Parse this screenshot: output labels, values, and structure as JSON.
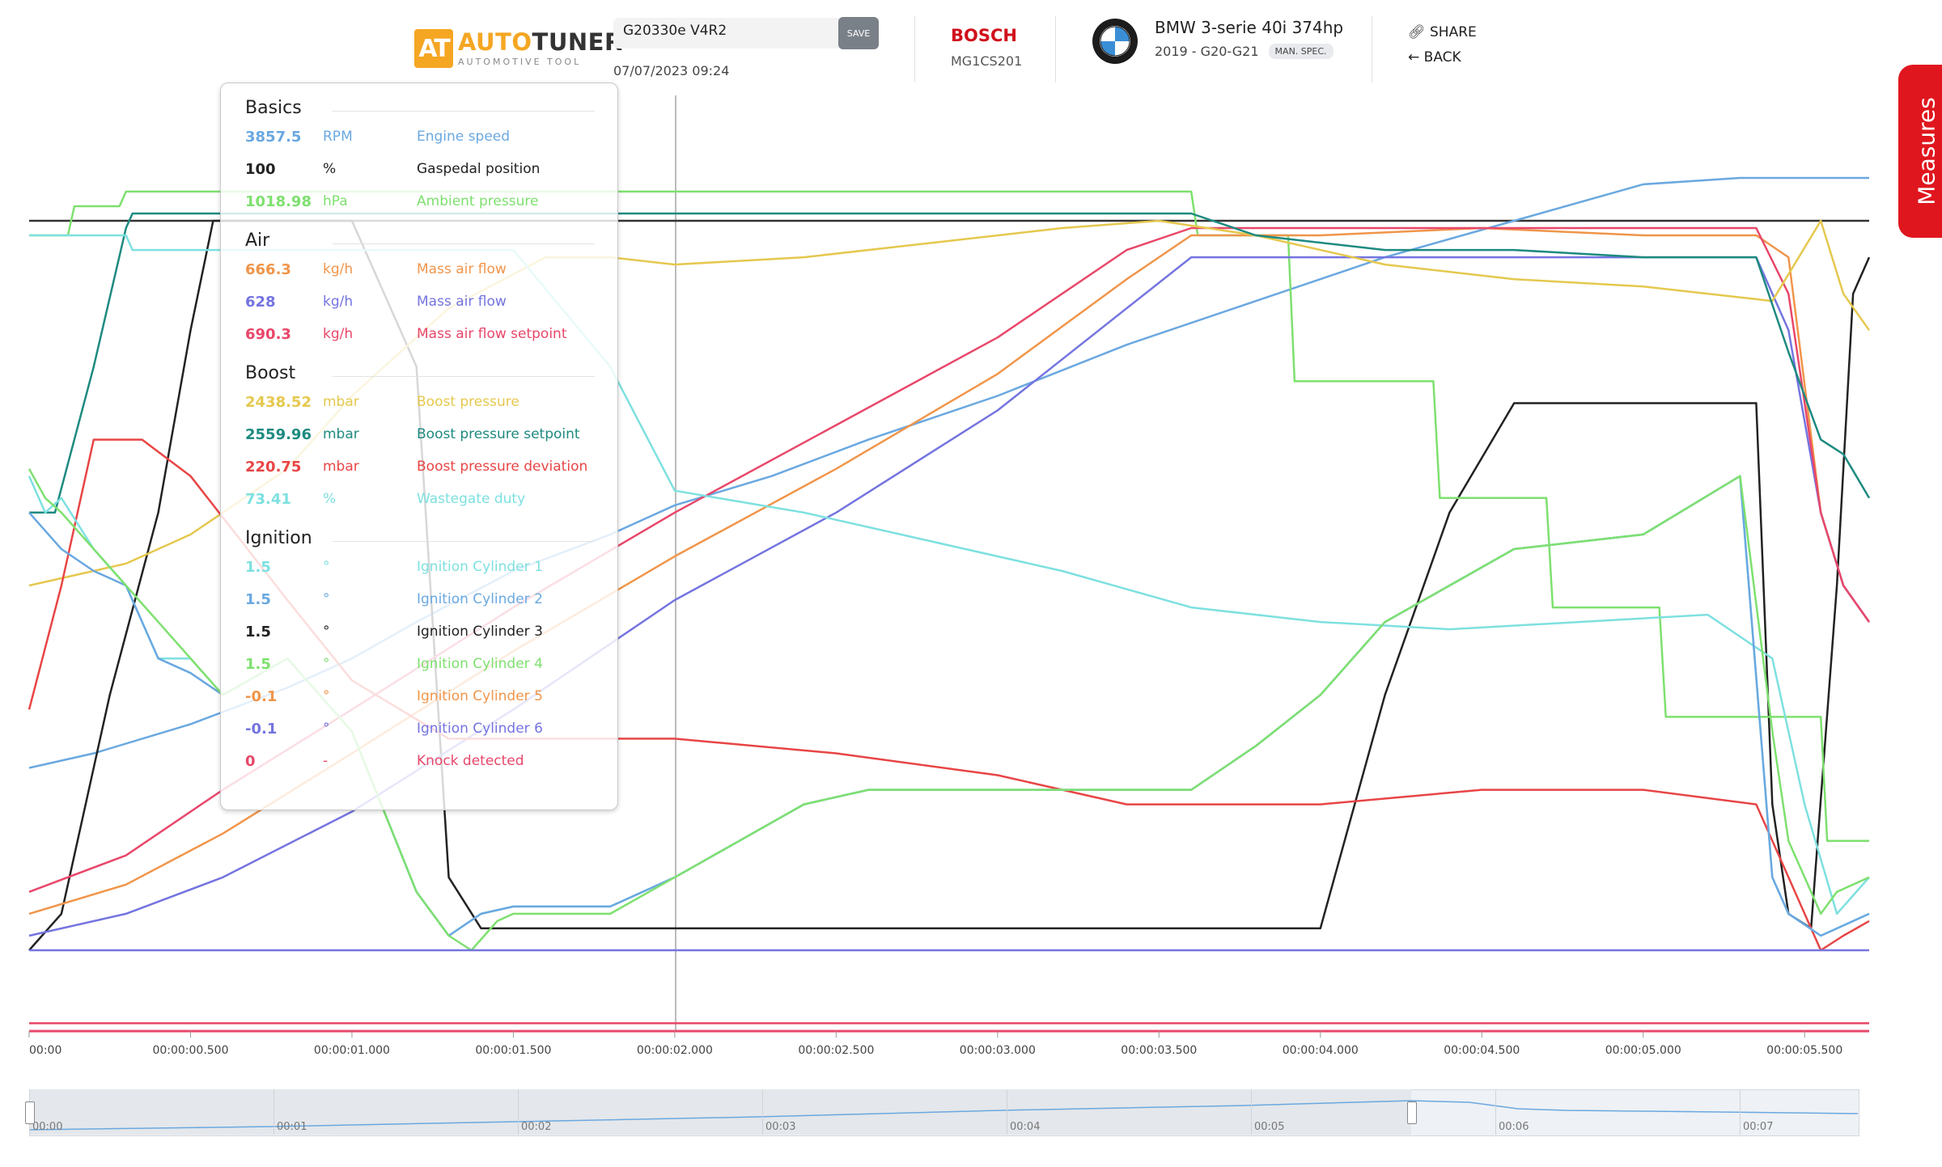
{
  "header": {
    "logo_mark": "AT",
    "logo_brand_a": "AUTO",
    "logo_brand_b": "TUNER",
    "logo_sub": "AUTOMOTIVE TOOL",
    "file_name": "G20330e V4R2",
    "save_label": "SAVE",
    "file_date": "07/07/2023 09:24",
    "ecu_brand": "BOSCH",
    "ecu_model": "MG1CS201",
    "car_title": "BMW 3-serie 40i 374hp",
    "car_sub": "2019 - G20-G21",
    "car_badge": "MAN. SPEC.",
    "share_label": "SHARE",
    "back_label": "BACK",
    "measures_label": "Measures"
  },
  "legend": {
    "groups": [
      {
        "title": "Basics",
        "rows": [
          {
            "value": "3857.5",
            "unit": "RPM",
            "name": "Engine speed",
            "color": "#6aa8e0"
          },
          {
            "value": "100",
            "unit": "%",
            "name": "Gaspedal position",
            "color": "#222222"
          },
          {
            "value": "1018.98",
            "unit": "hPa",
            "name": "Ambient pressure",
            "color": "#7ee06f"
          }
        ]
      },
      {
        "title": "Air",
        "rows": [
          {
            "value": "666.3",
            "unit": "kg/h",
            "name": "Mass air flow",
            "color": "#f0954a"
          },
          {
            "value": "628",
            "unit": "kg/h",
            "name": "Mass air flow",
            "color": "#7474e0"
          },
          {
            "value": "690.3",
            "unit": "kg/h",
            "name": "Mass air flow setpoint",
            "color": "#e8476a"
          }
        ]
      },
      {
        "title": "Boost",
        "rows": [
          {
            "value": "2438.52",
            "unit": "mbar",
            "name": "Boost pressure",
            "color": "#e5c84e"
          },
          {
            "value": "2559.96",
            "unit": "mbar",
            "name": "Boost pressure setpoint",
            "color": "#1e8a80"
          },
          {
            "value": "220.75",
            "unit": "mbar",
            "name": "Boost pressure deviation",
            "color": "#e84545"
          },
          {
            "value": "73.41",
            "unit": "%",
            "name": "Wastegate duty",
            "color": "#7ee0e0"
          }
        ]
      },
      {
        "title": "Ignition",
        "rows": [
          {
            "value": "1.5",
            "unit": "°",
            "name": "Ignition Cylinder 1",
            "color": "#7ee0e0"
          },
          {
            "value": "1.5",
            "unit": "°",
            "name": "Ignition Cylinder 2",
            "color": "#6aa8e0"
          },
          {
            "value": "1.5",
            "unit": "°",
            "name": "Ignition Cylinder 3",
            "color": "#222222"
          },
          {
            "value": "1.5",
            "unit": "°",
            "name": "Ignition Cylinder 4",
            "color": "#7ee06f"
          },
          {
            "value": "-0.1",
            "unit": "°",
            "name": "Ignition Cylinder 5",
            "color": "#f0954a"
          },
          {
            "value": "-0.1",
            "unit": "°",
            "name": "Ignition Cylinder 6",
            "color": "#7474e0"
          },
          {
            "value": "0",
            "unit": "-",
            "name": "Knock detected",
            "color": "#e8476a"
          }
        ]
      }
    ]
  },
  "axis": {
    "x_ticks": [
      "00:00",
      "00:00:00.500",
      "00:00:01.000",
      "00:00:01.500",
      "00:00:02.000",
      "00:00:02.500",
      "00:00:03.000",
      "00:00:03.500",
      "00:00:04.000",
      "00:00:04.500",
      "00:00:05.000",
      "00:00:05.500"
    ]
  },
  "timeline": {
    "labels": [
      "00:00",
      "00:01",
      "00:02",
      "00:03",
      "00:04",
      "00:05",
      "00:06",
      "00:07"
    ]
  },
  "chart_data": {
    "type": "line",
    "x_unit": "s",
    "xlim": [
      0,
      5.7
    ],
    "cursor_x": 2.0,
    "series": [
      {
        "name": "Engine speed",
        "color": "#6aa8e0",
        "x": [
          0,
          0.2,
          0.5,
          0.8,
          1.0,
          1.2,
          1.5,
          1.8,
          2.0,
          2.3,
          2.6,
          3.0,
          3.4,
          3.8,
          4.2,
          4.6,
          5.0,
          5.3,
          5.5,
          5.7
        ],
        "y": [
          0.25,
          0.27,
          0.31,
          0.36,
          0.4,
          0.45,
          0.52,
          0.57,
          0.61,
          0.65,
          0.7,
          0.76,
          0.83,
          0.89,
          0.95,
          1.0,
          1.05,
          1.09,
          1.1,
          1.1
        ]
      },
      {
        "name": "Gaspedal position",
        "color": "#222222",
        "x": [
          0,
          0.1,
          0.25,
          0.4,
          0.5,
          0.57,
          1.0,
          1.2,
          1.3,
          1.4,
          1.5,
          3.0,
          4.0,
          4.2,
          4.4,
          4.6,
          5.0,
          5.35,
          5.4,
          5.45,
          5.52,
          5.6,
          5.65,
          5.7
        ],
        "y": [
          0.0,
          0.05,
          0.35,
          0.6,
          0.85,
          1.0,
          1.0,
          0.8,
          0.1,
          0.03,
          0.03,
          0.03,
          0.03,
          0.35,
          0.6,
          0.75,
          0.75,
          0.75,
          0.2,
          0.05,
          0.03,
          0.5,
          0.9,
          0.95
        ]
      },
      {
        "name": "Ambient pressure",
        "color": "#7ee06f",
        "x": [
          0,
          0.12,
          0.14,
          0.28,
          0.3,
          3.6,
          3.62,
          3.9,
          3.92,
          4.35,
          4.37,
          4.7,
          4.72,
          5.05,
          5.07,
          5.55,
          5.57,
          5.7
        ],
        "y": [
          0.98,
          0.98,
          1.02,
          1.02,
          1.04,
          1.04,
          0.98,
          0.98,
          0.78,
          0.78,
          0.62,
          0.62,
          0.47,
          0.47,
          0.32,
          0.32,
          0.15,
          0.15
        ]
      },
      {
        "name": "Mass air flow",
        "color": "#f0954a",
        "x": [
          0,
          0.3,
          0.6,
          1.0,
          1.5,
          2.0,
          2.5,
          3.0,
          3.4,
          3.6,
          4.0,
          4.5,
          5.0,
          5.35,
          5.45,
          5.55,
          5.62,
          5.7
        ],
        "y": [
          0.05,
          0.09,
          0.16,
          0.27,
          0.41,
          0.54,
          0.66,
          0.79,
          0.92,
          0.98,
          0.98,
          0.99,
          0.98,
          0.98,
          0.95,
          0.6,
          0.5,
          0.45
        ]
      },
      {
        "name": "Mass air flow",
        "color": "#7474e0",
        "x": [
          0,
          0.3,
          0.6,
          1.0,
          1.5,
          2.0,
          2.5,
          3.0,
          3.4,
          3.6,
          4.0,
          4.5,
          5.0,
          5.35,
          5.45,
          5.55,
          5.62,
          5.7
        ],
        "y": [
          0.02,
          0.05,
          0.1,
          0.19,
          0.33,
          0.48,
          0.6,
          0.74,
          0.88,
          0.95,
          0.95,
          0.95,
          0.95,
          0.95,
          0.85,
          0.6,
          0.5,
          0.45
        ]
      },
      {
        "name": "Mass air flow setpoint",
        "color": "#e8476a",
        "x": [
          0,
          0.3,
          0.6,
          1.0,
          1.5,
          2.0,
          2.5,
          3.0,
          3.4,
          3.6,
          4.0,
          4.5,
          5.0,
          5.35,
          5.45,
          5.55,
          5.62,
          5.7
        ],
        "y": [
          0.08,
          0.13,
          0.22,
          0.33,
          0.47,
          0.6,
          0.72,
          0.84,
          0.96,
          0.99,
          0.99,
          0.99,
          0.99,
          0.99,
          0.9,
          0.6,
          0.5,
          0.45
        ]
      },
      {
        "name": "Boost pressure",
        "color": "#e5c84e",
        "x": [
          0,
          0.3,
          0.5,
          0.8,
          1.0,
          1.3,
          1.6,
          1.8,
          2.0,
          2.4,
          2.8,
          3.2,
          3.5,
          3.8,
          4.2,
          4.6,
          5.0,
          5.4,
          5.55,
          5.62,
          5.7
        ],
        "y": [
          0.5,
          0.53,
          0.57,
          0.66,
          0.76,
          0.88,
          0.95,
          0.95,
          0.94,
          0.95,
          0.97,
          0.99,
          1.0,
          0.98,
          0.94,
          0.92,
          0.91,
          0.89,
          1.0,
          0.9,
          0.85
        ]
      },
      {
        "name": "Boost pressure setpoint",
        "color": "#1e8a80",
        "x": [
          0,
          0.08,
          0.2,
          0.3,
          0.32,
          3.6,
          3.8,
          4.2,
          4.6,
          5.0,
          5.35,
          5.45,
          5.55,
          5.62,
          5.7
        ],
        "y": [
          0.6,
          0.6,
          0.8,
          0.99,
          1.01,
          1.01,
          0.98,
          0.96,
          0.96,
          0.95,
          0.95,
          0.82,
          0.7,
          0.68,
          0.62
        ]
      },
      {
        "name": "Boost pressure deviation",
        "color": "#e84545",
        "x": [
          0,
          0.1,
          0.2,
          0.35,
          0.5,
          0.8,
          1.0,
          1.3,
          2.0,
          2.5,
          3.0,
          3.4,
          3.6,
          4.0,
          4.5,
          5.0,
          5.35,
          5.45,
          5.55,
          5.62,
          5.7
        ],
        "y": [
          0.33,
          0.5,
          0.7,
          0.7,
          0.65,
          0.48,
          0.37,
          0.29,
          0.29,
          0.27,
          0.24,
          0.2,
          0.2,
          0.2,
          0.22,
          0.22,
          0.2,
          0.1,
          0.0,
          0.02,
          0.04
        ]
      },
      {
        "name": "Wastegate duty",
        "color": "#7ee0e0",
        "x": [
          0,
          0.2,
          0.3,
          0.32,
          1.5,
          1.8,
          2.0,
          2.4,
          2.8,
          3.2,
          3.6,
          4.0,
          4.4,
          4.8,
          5.2,
          5.4,
          5.5,
          5.6,
          5.7
        ],
        "y": [
          0.98,
          0.98,
          0.98,
          0.96,
          0.96,
          0.8,
          0.63,
          0.6,
          0.56,
          0.52,
          0.47,
          0.45,
          0.44,
          0.45,
          0.46,
          0.4,
          0.2,
          0.05,
          0.1
        ]
      },
      {
        "name": "Ignition Cylinder 1",
        "color": "#7ee0e0",
        "x": [
          0,
          0.05,
          0.1,
          0.2,
          0.3,
          0.4,
          0.5,
          0.6,
          0.8,
          1.0,
          1.2,
          1.3,
          1.4,
          1.5,
          1.8,
          2.0,
          2.2,
          2.4,
          2.6,
          3.0,
          3.6,
          3.8,
          4.0,
          4.2,
          4.4,
          4.6,
          5.0,
          5.3,
          5.4,
          5.45,
          5.55,
          5.7
        ],
        "y": [
          0.65,
          0.6,
          0.62,
          0.55,
          0.5,
          0.4,
          0.4,
          0.35,
          0.4,
          0.3,
          0.08,
          0.02,
          0.05,
          0.06,
          0.06,
          0.1,
          0.15,
          0.2,
          0.22,
          0.22,
          0.22,
          0.28,
          0.35,
          0.45,
          0.5,
          0.55,
          0.57,
          0.65,
          0.1,
          0.05,
          0.02,
          0.05
        ]
      },
      {
        "name": "Ignition Cylinder 2",
        "color": "#6aa8e0",
        "x": [
          0,
          0.1,
          0.2,
          0.3,
          0.4,
          0.5,
          0.6,
          0.8,
          1.0,
          1.2,
          1.3,
          1.4,
          1.5,
          1.8,
          2.0,
          2.2,
          2.4,
          2.6,
          3.0,
          3.6,
          3.8,
          4.0,
          4.2,
          4.4,
          4.6,
          5.0,
          5.3,
          5.4,
          5.45,
          5.55,
          5.7
        ],
        "y": [
          0.6,
          0.55,
          0.52,
          0.5,
          0.4,
          0.38,
          0.35,
          0.4,
          0.3,
          0.08,
          0.02,
          0.05,
          0.06,
          0.06,
          0.1,
          0.15,
          0.2,
          0.22,
          0.22,
          0.22,
          0.28,
          0.35,
          0.45,
          0.5,
          0.55,
          0.57,
          0.65,
          0.1,
          0.05,
          0.02,
          0.05
        ]
      },
      {
        "name": "Ignition Cylinder 4",
        "color": "#7ee06f",
        "x": [
          0,
          0.05,
          0.1,
          0.2,
          0.3,
          0.4,
          0.5,
          0.6,
          0.8,
          1.0,
          1.2,
          1.3,
          1.37,
          1.45,
          1.5,
          1.8,
          2.0,
          2.2,
          2.4,
          2.6,
          3.0,
          3.6,
          3.8,
          4.0,
          4.2,
          4.4,
          4.6,
          5.0,
          5.3,
          5.4,
          5.45,
          5.55,
          5.6,
          5.7
        ],
        "y": [
          0.66,
          0.62,
          0.6,
          0.55,
          0.5,
          0.45,
          0.4,
          0.35,
          0.4,
          0.3,
          0.08,
          0.02,
          0.0,
          0.04,
          0.05,
          0.05,
          0.1,
          0.15,
          0.2,
          0.22,
          0.22,
          0.22,
          0.28,
          0.35,
          0.45,
          0.5,
          0.55,
          0.57,
          0.65,
          0.3,
          0.15,
          0.05,
          0.08,
          0.1
        ]
      },
      {
        "name": "Ignition Cylinder 6",
        "color": "#7474e0",
        "x": [
          0,
          5.7
        ],
        "y": [
          0.0,
          0.0
        ]
      },
      {
        "name": "Knock detected",
        "color": "#e8476a",
        "x": [
          0,
          5.7
        ],
        "y": [
          -0.1,
          -0.1
        ]
      }
    ]
  }
}
